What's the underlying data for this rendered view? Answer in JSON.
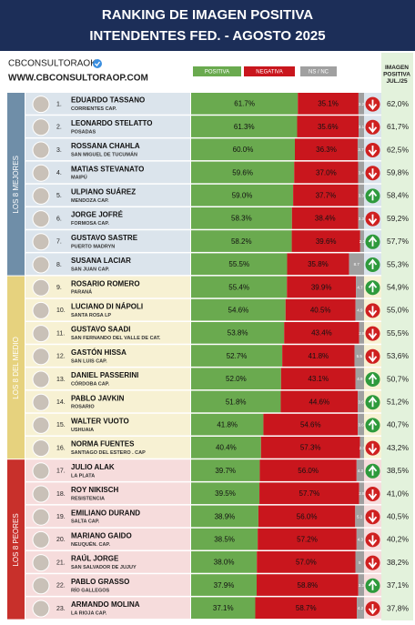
{
  "chart_data": {
    "type": "ranking-bar",
    "title": "RANKING DE IMAGEN POSITIVA",
    "subtitle": "INTENDENTES FED. - AGOSTO 2025",
    "source": "CBCONSULTORAOK",
    "website": "WWW.CBCONSULTORAOP.COM",
    "xlim": [
      0,
      100
    ],
    "ranks": [
      "1.",
      "2.",
      "3.",
      "4.",
      "5.",
      "6.",
      "7.",
      "8.",
      "9.",
      "10.",
      "11.",
      "12.",
      "13.",
      "14.",
      "15.",
      "16.",
      "17.",
      "18.",
      "19.",
      "20.",
      "21.",
      "22.",
      "23."
    ],
    "categories": [
      "EDUARDO TASSANO",
      "LEONARDO STELATTO",
      "ROSSANA CHAHLA",
      "MATIAS STEVANATO",
      "ULPIANO SUÁREZ",
      "JORGE JOFRÉ",
      "GUSTAVO SASTRE",
      "SUSANA LACIAR",
      "ROSARIO ROMERO",
      "LUCIANO DI NÁPOLI",
      "GUSTAVO SAADI",
      "GASTÓN HISSA",
      "DANIEL PASSERINI",
      "PABLO JAVKIN",
      "WALTER VUOTO",
      "NORMA FUENTES",
      "JULIO ALAK",
      "ROY NIKISCH",
      "EMILIANO DURAND",
      "MARIANO GAIDO",
      "RAÚL JORGE",
      "PABLO GRASSO",
      "ARMANDO MOLINA"
    ],
    "places": [
      "CORRIENTES CAP.",
      "POSADAS",
      "SAN MIGUEL DE TUCUMÁN",
      "MAIPÚ",
      "MENDOZA CAP.",
      "FORMOSA CAP.",
      "PUERTO MADRYN",
      "SAN JUAN CAP.",
      "PARANÁ",
      "SANTA ROSA LP",
      "SAN FERNANDO DEL VALLE DE CAT.",
      "SAN LUIS CAP.",
      "CÓRDOBA CAP.",
      "ROSARIO",
      "USHUAIA",
      "SANTIAGO DEL ESTERO . CAP",
      "LA PLATA",
      "RESISTENCIA",
      "SALTA CAP.",
      "NEUQUÉN. CAP.",
      "SAN SALVADOR DE JUJUY",
      "RÍO GALLEGOS",
      "LA RIOJA CAP."
    ],
    "groups": [
      {
        "label": "LOS 8 MEJORES",
        "color": "#6f8ea8",
        "row_color": "#dbe4ec",
        "size": 8
      },
      {
        "label": "LOS 8 DEL MEDIO",
        "color": "#e6d27e",
        "row_color": "#f7f1d3",
        "size": 8
      },
      {
        "label": "LOS 8 PEORES",
        "color": "#c8302b",
        "row_color": "#f6dcdc",
        "size": 7
      }
    ],
    "series": [
      {
        "name": "POSITIVA",
        "color": "#6aaa4f",
        "values": [
          61.7,
          61.3,
          60.0,
          59.6,
          59.0,
          58.3,
          58.2,
          55.5,
          55.4,
          54.6,
          53.8,
          52.7,
          52.0,
          51.8,
          41.8,
          40.4,
          39.7,
          39.5,
          38.9,
          38.5,
          38.0,
          37.9,
          37.1
        ],
        "value_labels": [
          "61.7%",
          "61.3%",
          "60.0%",
          "59.6%",
          "59.0%",
          "58.3%",
          "58.2%",
          "55.5%",
          "55.4%",
          "54.6%",
          "53.8%",
          "52.7%",
          "52.0%",
          "51.8%",
          "41.8%",
          "40.4%",
          "39.7%",
          "39.5%",
          "38.9%",
          "38.5%",
          "38.0%",
          "37.9%",
          "37.1%"
        ]
      },
      {
        "name": "NEGATIVA",
        "color": "#c9161d",
        "values": [
          35.1,
          35.6,
          36.3,
          37.0,
          37.7,
          38.4,
          39.6,
          35.8,
          39.9,
          40.5,
          43.4,
          41.8,
          43.1,
          44.6,
          54.6,
          57.3,
          56.0,
          57.7,
          56.0,
          57.2,
          57.0,
          58.8,
          58.7
        ],
        "value_labels": [
          "35.1%",
          "35.6%",
          "36.3%",
          "37.0%",
          "37.7%",
          "38.4%",
          "39.6%",
          "35.8%",
          "39.9%",
          "40.5%",
          "43.4%",
          "41.8%",
          "43.1%",
          "44.6%",
          "54.6%",
          "57.3%",
          "56.0%",
          "57.7%",
          "56.0%",
          "57.2%",
          "57.0%",
          "58.8%",
          "58.7%"
        ]
      },
      {
        "name": "NS / NC",
        "color": "#a0a0a0",
        "values": [
          3.2,
          3.1,
          3.7,
          3.4,
          3.3,
          3.3,
          2.2,
          8.7,
          4.7,
          4.9,
          2.8,
          5.5,
          4.9,
          3.6,
          3.6,
          2.3,
          4.3,
          2.8,
          5.1,
          4.3,
          5.0,
          3.3,
          4.2
        ]
      }
    ],
    "trend": [
      "down",
      "down",
      "down",
      "down",
      "up",
      "down",
      "up",
      "up",
      "up",
      "down",
      "down",
      "down",
      "up",
      "up",
      "up",
      "down",
      "up",
      "down",
      "down",
      "down",
      "down",
      "up",
      "down"
    ],
    "previous": {
      "name": "IMAGEN POSITIVA JUL./25",
      "color": "#e3f2dc",
      "values": [
        62.0,
        61.7,
        62.5,
        59.8,
        58.4,
        59.2,
        57.7,
        55.3,
        54.9,
        55.0,
        55.5,
        53.6,
        50.7,
        51.2,
        40.7,
        43.2,
        38.5,
        41.0,
        40.5,
        40.2,
        38.2,
        37.1,
        37.8
      ],
      "value_labels": [
        "62,0%",
        "61,7%",
        "62,5%",
        "59,8%",
        "58,4%",
        "59,2%",
        "57,7%",
        "55,3%",
        "54,9%",
        "55,0%",
        "55,5%",
        "53,6%",
        "50,7%",
        "51,2%",
        "40,7%",
        "43,2%",
        "38,5%",
        "41,0%",
        "40,5%",
        "40,2%",
        "38,2%",
        "37,1%",
        "37,8%"
      ]
    }
  }
}
